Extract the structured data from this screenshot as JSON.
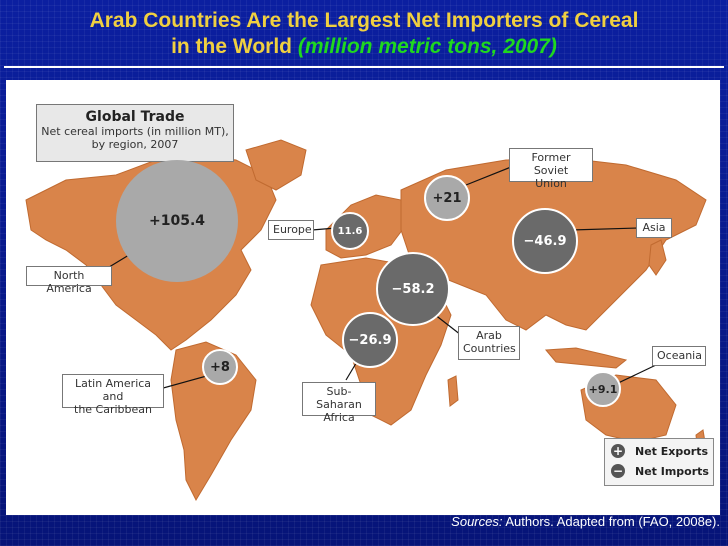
{
  "title": {
    "main_line1": "Arab Countries Are the Largest Net Importers of Cereal",
    "main_line2": "in the World ",
    "subtitle": "(million metric tons, 2007)"
  },
  "global_trade": {
    "heading": "Global Trade",
    "line1": "Net cereal imports (in million MT),",
    "line2": "by region, 2007"
  },
  "regions": [
    {
      "name": "North America",
      "value": "+105.4",
      "type": "export"
    },
    {
      "name": "Europe",
      "value": "11.6",
      "type": "import"
    },
    {
      "name": "Former Soviet Union",
      "value": "+21",
      "type": "export"
    },
    {
      "name": "Asia",
      "value": "−46.9",
      "type": "import"
    },
    {
      "name": "Arab Countries",
      "value": "−58.2",
      "type": "import"
    },
    {
      "name": "Sub-Saharan Africa",
      "value": "−26.9",
      "type": "import"
    },
    {
      "name": "Latin America and the Caribbean",
      "value": "+8",
      "type": "export"
    },
    {
      "name": "Oceania",
      "value": "+9.1",
      "type": "export"
    }
  ],
  "labels": {
    "north_america": "North America",
    "europe": "Europe",
    "fsu_1": "Former Soviet",
    "fsu_2": "Union",
    "asia": "Asia",
    "arab_1": "Arab",
    "arab_2": "Countries",
    "ssa_1": "Sub-Saharan",
    "ssa_2": "Africa",
    "lac_1": "Latin America and",
    "lac_2": "the Caribbean",
    "oceania": "Oceania"
  },
  "legend": {
    "plus_symbol": "+",
    "minus_symbol": "−",
    "exports": "Net Exports",
    "imports": "Net Imports"
  },
  "sources": {
    "prefix": "Sources:",
    "text": " Authors. Adapted from (FAO, 2008e)."
  },
  "colors": {
    "background": "#0a1a8c",
    "title": "#f0d040",
    "subtitle": "#1fd81f",
    "land": "#d9844a",
    "circle_export": "#a9a9a9",
    "circle_import": "#6a6a6a"
  }
}
